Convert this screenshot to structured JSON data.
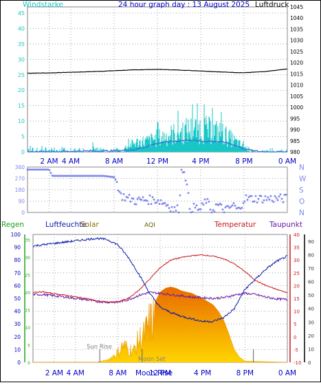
{
  "colors": {
    "wind": "#18c6c6",
    "gust": "#18c6c6",
    "wind_avg": "#3a6bd8",
    "pressure": "#000000",
    "direction": "#7f86ee",
    "humidity": "#0a1aa8",
    "temperature": "#c8161a",
    "dewpoint": "#6a1aa8",
    "solar_top": "#ffd400",
    "solar_bottom": "#e86a00",
    "rain": "#1fa31f",
    "aqi": "#7a6a00",
    "grid": "#a0a0a0",
    "frame": "#808080"
  },
  "chart_data": [
    {
      "type": "line",
      "title": "24 hour graph day : 13 August 2025",
      "left_label": "Windstarke",
      "right_label": "Luftdruck",
      "xticks": [
        "2 AM",
        "4 AM",
        "8 AM",
        "12 PM",
        "4 PM",
        "8 PM",
        "0 AM"
      ],
      "yticks_left": [
        "0",
        "5",
        "10",
        "15",
        "20",
        "25",
        "30",
        "35",
        "40",
        "45"
      ],
      "yticks_right": [
        "980",
        "985",
        "990",
        "995",
        "1000",
        "1005",
        "1010",
        "1015",
        "1020",
        "1025",
        "1030",
        "1035",
        "1040",
        "1045"
      ],
      "ylim_left": [
        0,
        47
      ],
      "ylim_right": [
        980,
        1045
      ],
      "xlim_hours": [
        0,
        24
      ],
      "grid": true,
      "series": [
        {
          "key": "pressure",
          "axis": "right",
          "x": [
            0,
            2,
            4,
            6,
            8,
            10,
            12,
            14,
            16,
            18,
            20,
            22,
            24
          ],
          "y": [
            1015.3,
            1015.4,
            1015.7,
            1016.0,
            1016.4,
            1016.8,
            1017.0,
            1016.7,
            1016.3,
            1015.8,
            1015.5,
            1016.0,
            1017.2
          ]
        },
        {
          "key": "gust",
          "axis": "left",
          "x": [
            0,
            1,
            2,
            3,
            4,
            5,
            6,
            7,
            8,
            9,
            10,
            11,
            12,
            13,
            14,
            15,
            16,
            17,
            18,
            19,
            20,
            21,
            22,
            23,
            24
          ],
          "y": [
            1,
            2,
            1,
            1.5,
            1.5,
            1,
            2,
            1,
            1,
            2,
            4,
            4.5,
            6,
            7,
            8.5,
            9.5,
            10,
            9,
            8,
            5,
            2,
            0.5,
            0.5,
            1.5,
            0.5
          ]
        },
        {
          "key": "wind_avg",
          "axis": "left",
          "x": [
            0,
            2,
            4,
            6,
            8,
            10,
            11,
            12,
            13,
            14,
            15,
            16,
            17,
            18,
            19,
            20,
            21,
            22,
            24
          ],
          "y": [
            0,
            0,
            0.2,
            0.3,
            0.3,
            0.8,
            1.8,
            2.8,
            3.3,
            3.6,
            3.9,
            3.4,
            3.5,
            3.2,
            2.4,
            1,
            0.3,
            0,
            0
          ]
        }
      ]
    },
    {
      "type": "scatter",
      "right_labels": [
        "N",
        "W",
        "S",
        "O",
        "N"
      ],
      "yticks_left": [
        "0",
        "90",
        "180",
        "270",
        "360"
      ],
      "ylim": [
        0,
        360
      ],
      "xlim_hours": [
        0,
        24
      ],
      "grid": true,
      "series": [
        {
          "key": "direction",
          "x": [
            0,
            1,
            2,
            2.3,
            3,
            5,
            7,
            8,
            8.3,
            8.6,
            8.9,
            9.2,
            9.5,
            10,
            10.5,
            11,
            11.5,
            12,
            12.5,
            13,
            13.5,
            14,
            14.2,
            14.5,
            15,
            15.5,
            16,
            16.5,
            17,
            17.5,
            18,
            18.5,
            19,
            19.5,
            20,
            22,
            24
          ],
          "y": [
            340,
            340,
            340,
            290,
            290,
            290,
            290,
            280,
            235,
            130,
            130,
            110,
            110,
            90,
            100,
            100,
            100,
            100,
            80,
            60,
            20,
            30,
            320,
            350,
            30,
            40,
            20,
            100,
            10,
            60,
            30,
            20,
            60,
            10,
            110,
            110,
            110
          ]
        }
      ]
    },
    {
      "type": "line",
      "legend": [
        "Regen",
        "Luftfeuchte",
        "Solar",
        "AQI",
        "Temperatur",
        "Taupunkt"
      ],
      "axis_labels": {
        "far_left": [
          "0",
          "5",
          "10",
          "15",
          "20",
          "25",
          "30",
          "35"
        ],
        "left": [
          "0",
          "10",
          "20",
          "30",
          "40",
          "50",
          "60",
          "70",
          "80",
          "90",
          "100"
        ],
        "right_temp": [
          "-10",
          "-5",
          "0",
          "5",
          "10",
          "15",
          "20",
          "25",
          "30",
          "35",
          "40"
        ],
        "far_right": [
          "0",
          "10",
          "20",
          "30",
          "40",
          "50",
          "60",
          "70",
          "80",
          "90"
        ]
      },
      "xticks": [
        "2 AM",
        "4 AM",
        "8 AM",
        "12 PM",
        "4 PM",
        "8 PM",
        "0 AM"
      ],
      "annotations": [
        "Sun Rise",
        "Moon Set",
        "Moon Rise"
      ],
      "ylim_humidity": [
        0,
        100
      ],
      "ylim_temperature": [
        -10,
        40
      ],
      "xlim_hours": [
        0,
        24
      ],
      "grid": true,
      "series": [
        {
          "key": "humidity",
          "x": [
            0,
            2,
            4,
            6,
            7,
            8,
            9,
            10,
            11,
            12,
            13,
            14,
            15,
            16,
            17,
            18,
            19,
            20,
            21,
            22,
            23,
            24
          ],
          "y": [
            91,
            93,
            95,
            97,
            96,
            92,
            82,
            69,
            54,
            43,
            39,
            36,
            34,
            32,
            32,
            35,
            42,
            57,
            65,
            73,
            79,
            83
          ]
        },
        {
          "key": "temperature",
          "x": [
            0,
            1,
            2,
            3,
            4,
            5,
            6,
            7,
            8,
            9,
            10,
            11,
            12,
            13,
            14,
            15,
            16,
            17,
            18,
            19,
            20,
            21,
            22,
            23,
            24
          ],
          "y": [
            17.5,
            17.5,
            16.8,
            16.3,
            15.6,
            15,
            14,
            13.6,
            13.6,
            15,
            18.2,
            22.5,
            27,
            30,
            31,
            31.7,
            32,
            31.5,
            30.5,
            28.5,
            25.5,
            22,
            20,
            18.5,
            17.2
          ]
        },
        {
          "key": "dewpoint",
          "x": [
            0,
            1,
            2,
            3,
            4,
            5,
            6,
            7,
            8,
            9,
            10,
            11,
            12,
            13,
            14,
            15,
            16,
            17,
            18,
            19,
            20,
            21,
            22,
            23,
            24
          ],
          "y": [
            16.5,
            16.5,
            16,
            15.6,
            15,
            14.5,
            13.8,
            13.5,
            13.5,
            14.5,
            16.2,
            17.3,
            17,
            16.5,
            16,
            15.5,
            15.3,
            15,
            15.3,
            16.3,
            17,
            16.5,
            15.5,
            14.8,
            14.5
          ]
        },
        {
          "key": "solar",
          "x": [
            0,
            6,
            7,
            7.5,
            8,
            8.5,
            9,
            9.5,
            10,
            10.5,
            11,
            11.5,
            12,
            12.5,
            13,
            13.5,
            14,
            15,
            16,
            17,
            17.5,
            18,
            18.5,
            19,
            19.5,
            20,
            24
          ],
          "y": [
            0,
            0,
            2,
            6,
            10,
            18,
            14,
            12,
            24,
            28,
            41,
            47,
            55,
            58,
            59,
            58,
            56,
            54,
            50,
            45,
            40,
            33,
            22,
            10,
            4,
            1,
            0
          ]
        }
      ]
    }
  ]
}
